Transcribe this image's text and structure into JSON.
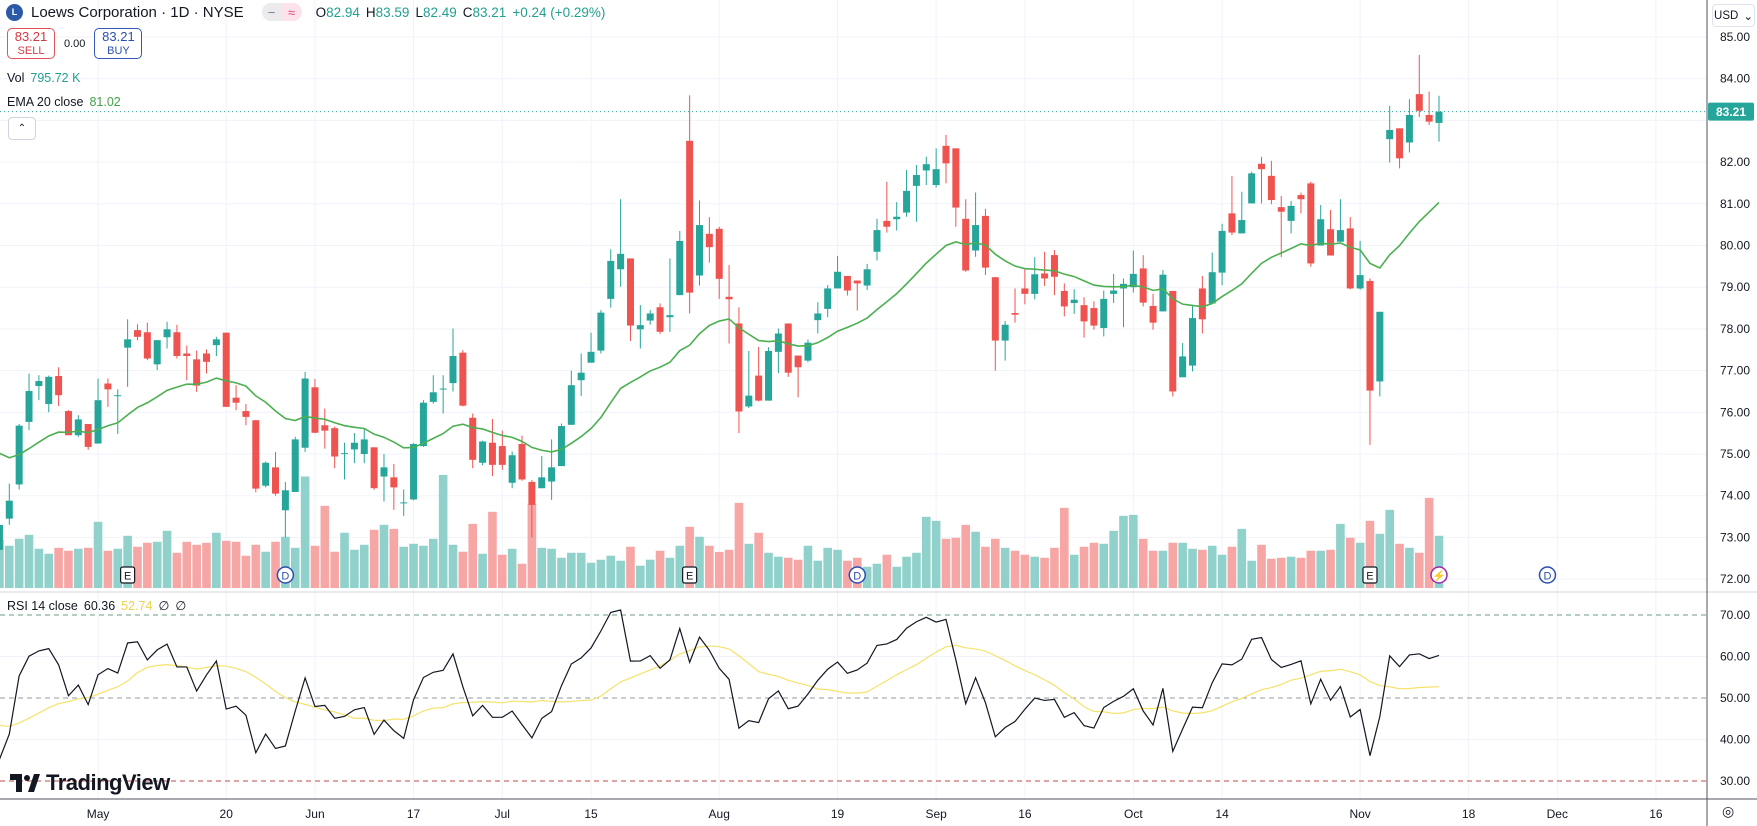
{
  "header": {
    "logo_text": "L",
    "symbol_title": "Loews Corporation · 1D · NYSE",
    "pill_icons": [
      "−",
      "≈"
    ],
    "ohlc": {
      "o_label": "O",
      "o": "82.94",
      "h_label": "H",
      "h": "83.59",
      "l_label": "L",
      "l": "82.49",
      "c_label": "C",
      "c": "83.21",
      "change": "+0.24 (+0.29%)"
    }
  },
  "trade": {
    "sell_price": "83.21",
    "sell_label": "SELL",
    "spread": "0.00",
    "buy_price": "83.21",
    "buy_label": "BUY"
  },
  "volume_legend": {
    "label": "Vol",
    "value": "795.72 K"
  },
  "ema_legend": {
    "label": "EMA 20 close",
    "value": "81.02"
  },
  "rsi_legend": {
    "label": "RSI 14 close",
    "value": "60.36",
    "ma_value": "52.74",
    "extra1": "∅",
    "extra2": "∅"
  },
  "collapse_icon": "⌃",
  "currency": {
    "label": "USD",
    "chevron": "⌄"
  },
  "last_price_tag": "83.21",
  "branding": "TradingView",
  "settings_icon": "◎",
  "colors": {
    "up": "#26a69a",
    "down": "#ef5350",
    "ema": "#4caf50",
    "rsi": "#131722",
    "rsi_ma": "#f5e26b",
    "vol_up": "#90d2cb",
    "vol_down": "#f5a6a5"
  },
  "chart_data": {
    "type": "candlestick",
    "title": "Loews Corporation · 1D · NYSE",
    "price_axis_ticks": [
      "85.00",
      "84.00",
      "83.00",
      "82.00",
      "81.00",
      "80.00",
      "79.00",
      "78.00",
      "77.00",
      "76.00",
      "75.00",
      "74.00",
      "73.00",
      "72.00"
    ],
    "price_range": [
      72,
      85
    ],
    "rsi_axis_ticks": [
      "70.00",
      "60.00",
      "50.00",
      "40.00",
      "30.00"
    ],
    "rsi_range": [
      30,
      70
    ],
    "x_ticks": [
      {
        "label": "May",
        "bar": 10
      },
      {
        "label": "20",
        "bar": 23
      },
      {
        "label": "Jun",
        "bar": 32
      },
      {
        "label": "17",
        "bar": 42
      },
      {
        "label": "Jul",
        "bar": 51
      },
      {
        "label": "15",
        "bar": 60
      },
      {
        "label": "Aug",
        "bar": 73
      },
      {
        "label": "19",
        "bar": 85
      },
      {
        "label": "Sep",
        "bar": 95
      },
      {
        "label": "16",
        "bar": 104
      },
      {
        "label": "Oct",
        "bar": 115
      },
      {
        "label": "14",
        "bar": 124
      },
      {
        "label": "Nov",
        "bar": 138
      },
      {
        "label": "18",
        "bar": 149
      },
      {
        "label": "Dec",
        "bar": 158
      },
      {
        "label": "16",
        "bar": 168
      }
    ],
    "events": [
      {
        "type": "E",
        "bar": 13
      },
      {
        "type": "D",
        "bar": 29
      },
      {
        "type": "E",
        "bar": 70
      },
      {
        "type": "D",
        "bar": 87
      },
      {
        "type": "E",
        "bar": 139
      },
      {
        "type": "⚡",
        "bar": 146
      },
      {
        "type": "D",
        "bar": 157
      }
    ],
    "ema_period": 20,
    "ema_seed": 75.2,
    "rsi_period": 14,
    "candle_fields": [
      "open",
      "high",
      "low",
      "close",
      "volume_k"
    ],
    "candles": [
      [
        72.7,
        73.4,
        72.6,
        73.3,
        735
      ],
      [
        73.45,
        74.29,
        73.3,
        73.88,
        644
      ],
      [
        74.27,
        75.72,
        74.15,
        75.68,
        750
      ],
      [
        75.77,
        76.93,
        75.57,
        76.51,
        811
      ],
      [
        76.63,
        76.89,
        76.29,
        76.75,
        598
      ],
      [
        76.2,
        76.88,
        76.0,
        76.85,
        522
      ],
      [
        76.87,
        77.08,
        76.15,
        76.41,
        613
      ],
      [
        76.03,
        76.05,
        75.45,
        75.45,
        568
      ],
      [
        75.45,
        75.93,
        75.41,
        75.83,
        598
      ],
      [
        75.72,
        75.72,
        75.1,
        75.17,
        613
      ],
      [
        75.25,
        76.81,
        75.25,
        76.29,
        1009
      ],
      [
        76.69,
        76.81,
        76.13,
        76.55,
        568
      ],
      [
        76.39,
        76.55,
        75.48,
        76.41,
        598
      ],
      [
        77.55,
        78.23,
        76.61,
        77.75,
        796
      ],
      [
        77.97,
        78.11,
        77.73,
        77.81,
        629
      ],
      [
        77.92,
        78.15,
        77.25,
        77.29,
        690
      ],
      [
        77.15,
        77.73,
        77.01,
        77.73,
        705
      ],
      [
        77.8,
        78.17,
        77.53,
        77.99,
        872
      ],
      [
        77.92,
        78.1,
        77.29,
        77.35,
        537
      ],
      [
        77.41,
        77.6,
        76.77,
        77.35,
        705
      ],
      [
        77.27,
        77.48,
        76.49,
        76.64,
        659
      ],
      [
        77.41,
        77.51,
        76.93,
        77.21,
        690
      ],
      [
        77.61,
        77.81,
        77.35,
        77.75,
        842
      ],
      [
        77.91,
        77.91,
        76.13,
        76.13,
        720
      ],
      [
        76.35,
        76.65,
        76.05,
        76.23,
        705
      ],
      [
        76.03,
        76.2,
        75.69,
        75.89,
        492
      ],
      [
        75.81,
        75.81,
        74.08,
        74.17,
        659
      ],
      [
        74.24,
        74.82,
        74.2,
        74.79,
        553
      ],
      [
        74.68,
        75.05,
        74.0,
        74.05,
        705
      ],
      [
        73.65,
        74.33,
        73.0,
        74.13,
        781
      ],
      [
        74.09,
        75.41,
        74.09,
        75.35,
        613
      ],
      [
        75.15,
        76.97,
        75.05,
        76.81,
        1700
      ],
      [
        76.6,
        76.8,
        75.5,
        75.51,
        644
      ],
      [
        75.69,
        76.09,
        75.13,
        75.56,
        1252
      ],
      [
        75.62,
        75.66,
        74.66,
        74.94,
        553
      ],
      [
        75.0,
        75.27,
        74.39,
        75.02,
        842
      ],
      [
        75.11,
        75.5,
        74.78,
        75.27,
        583
      ],
      [
        75.0,
        75.62,
        74.78,
        75.35,
        659
      ],
      [
        75.16,
        75.16,
        74.14,
        74.18,
        887
      ],
      [
        74.46,
        75.0,
        73.86,
        74.68,
        963
      ],
      [
        74.44,
        74.76,
        73.66,
        74.2,
        902
      ],
      [
        73.82,
        74.15,
        73.51,
        73.84,
        629
      ],
      [
        73.91,
        75.26,
        73.89,
        75.24,
        674
      ],
      [
        75.19,
        76.29,
        75.17,
        76.23,
        644
      ],
      [
        76.25,
        76.89,
        76.21,
        76.48,
        750
      ],
      [
        76.55,
        76.89,
        75.97,
        76.57,
        1724
      ],
      [
        76.7,
        78.01,
        76.5,
        77.35,
        659
      ],
      [
        77.43,
        77.49,
        76.14,
        76.16,
        553
      ],
      [
        75.87,
        75.97,
        74.66,
        74.86,
        978
      ],
      [
        74.79,
        75.32,
        74.73,
        75.3,
        522
      ],
      [
        75.27,
        75.84,
        74.47,
        74.74,
        1161
      ],
      [
        75.19,
        75.56,
        74.62,
        74.74,
        507
      ],
      [
        74.31,
        75.06,
        74.18,
        74.97,
        598
      ],
      [
        75.24,
        75.44,
        74.36,
        74.39,
        370
      ],
      [
        74.33,
        74.38,
        73.0,
        73.78,
        1283
      ],
      [
        74.18,
        74.95,
        74.18,
        74.44,
        613
      ],
      [
        74.34,
        75.35,
        73.9,
        74.68,
        598
      ],
      [
        74.71,
        75.73,
        74.71,
        75.67,
        461
      ],
      [
        75.7,
        77.0,
        75.7,
        76.65,
        537
      ],
      [
        76.77,
        77.41,
        76.39,
        76.95,
        537
      ],
      [
        77.19,
        77.91,
        77.19,
        77.45,
        385
      ],
      [
        77.48,
        78.45,
        77.41,
        78.39,
        431
      ],
      [
        78.72,
        79.91,
        78.51,
        79.63,
        492
      ],
      [
        79.43,
        81.11,
        79.01,
        79.8,
        416
      ],
      [
        79.69,
        79.69,
        77.71,
        78.08,
        629
      ],
      [
        77.99,
        78.57,
        77.53,
        78.09,
        340
      ],
      [
        78.2,
        78.45,
        78.1,
        78.37,
        431
      ],
      [
        78.52,
        78.61,
        77.88,
        77.93,
        568
      ],
      [
        78.28,
        79.69,
        77.93,
        78.33,
        461
      ],
      [
        78.81,
        80.35,
        78.81,
        80.11,
        644
      ],
      [
        82.51,
        83.6,
        78.37,
        78.87,
        933
      ],
      [
        79.28,
        81.08,
        79.04,
        80.49,
        781
      ],
      [
        80.28,
        80.68,
        79.59,
        79.96,
        644
      ],
      [
        80.4,
        80.45,
        78.72,
        79.2,
        550
      ],
      [
        78.77,
        79.53,
        77.65,
        78.71,
        583
      ],
      [
        78.13,
        78.52,
        75.5,
        76.02,
        1298
      ],
      [
        76.14,
        77.47,
        76.1,
        76.4,
        674
      ],
      [
        76.88,
        77.57,
        76.26,
        76.28,
        842
      ],
      [
        76.28,
        77.56,
        76.28,
        77.47,
        537
      ],
      [
        77.45,
        78.01,
        76.94,
        77.89,
        477
      ],
      [
        78.13,
        78.13,
        76.85,
        76.95,
        461
      ],
      [
        77.36,
        77.36,
        76.36,
        77.08,
        431
      ],
      [
        77.24,
        77.75,
        77.2,
        77.67,
        644
      ],
      [
        78.21,
        78.64,
        77.89,
        78.37,
        416
      ],
      [
        78.48,
        79.05,
        78.28,
        78.97,
        613
      ],
      [
        78.97,
        79.75,
        78.97,
        79.37,
        583
      ],
      [
        79.27,
        79.27,
        78.8,
        78.92,
        416
      ],
      [
        79.16,
        79.16,
        78.44,
        79.09,
        461
      ],
      [
        79.04,
        79.56,
        78.93,
        79.43,
        324
      ],
      [
        79.85,
        80.64,
        79.64,
        80.37,
        370
      ],
      [
        80.59,
        81.53,
        80.31,
        80.45,
        507
      ],
      [
        80.63,
        81.04,
        80.36,
        80.69,
        324
      ],
      [
        80.79,
        81.81,
        80.69,
        81.31,
        477
      ],
      [
        81.43,
        81.93,
        80.57,
        81.69,
        537
      ],
      [
        81.8,
        82.13,
        81.45,
        81.95,
        1085
      ],
      [
        81.45,
        82.33,
        81.39,
        81.83,
        1024
      ],
      [
        82.39,
        82.65,
        81.49,
        81.97,
        750
      ],
      [
        82.33,
        82.33,
        80.45,
        80.91,
        766
      ],
      [
        80.64,
        81.11,
        79.37,
        79.4,
        963
      ],
      [
        79.88,
        81.27,
        79.73,
        80.49,
        857
      ],
      [
        80.71,
        80.88,
        79.29,
        79.47,
        629
      ],
      [
        79.24,
        79.24,
        77.0,
        77.72,
        750
      ],
      [
        77.72,
        78.19,
        77.24,
        78.1,
        613
      ],
      [
        78.38,
        78.97,
        78.15,
        78.34,
        568
      ],
      [
        78.97,
        79.43,
        78.59,
        78.84,
        507
      ],
      [
        78.84,
        79.72,
        78.71,
        79.31,
        477
      ],
      [
        79.33,
        79.85,
        79.03,
        79.21,
        461
      ],
      [
        79.77,
        79.89,
        78.81,
        79.25,
        613
      ],
      [
        78.91,
        79.09,
        78.3,
        78.54,
        1222
      ],
      [
        78.62,
        78.95,
        78.36,
        78.7,
        507
      ],
      [
        78.57,
        78.76,
        77.79,
        78.18,
        629
      ],
      [
        78.5,
        78.66,
        77.98,
        78.08,
        690
      ],
      [
        78.02,
        78.92,
        77.82,
        78.72,
        674
      ],
      [
        78.84,
        79.32,
        78.62,
        78.92,
        872
      ],
      [
        78.97,
        79.21,
        78.04,
        79.08,
        1100
      ],
      [
        79.0,
        79.88,
        78.87,
        79.32,
        1115
      ],
      [
        79.45,
        79.77,
        78.54,
        78.63,
        750
      ],
      [
        78.55,
        78.84,
        77.98,
        78.15,
        568
      ],
      [
        78.42,
        79.41,
        78.42,
        79.3,
        568
      ],
      [
        78.91,
        78.91,
        76.38,
        76.5,
        690
      ],
      [
        76.84,
        77.66,
        76.84,
        77.34,
        690
      ],
      [
        77.12,
        78.57,
        76.98,
        78.26,
        598
      ],
      [
        78.97,
        79.27,
        77.89,
        78.23,
        583
      ],
      [
        78.61,
        79.83,
        78.61,
        79.36,
        644
      ],
      [
        79.35,
        80.52,
        79.05,
        80.35,
        507
      ],
      [
        80.77,
        81.67,
        80.25,
        80.31,
        629
      ],
      [
        80.29,
        81.29,
        80.29,
        80.61,
        902
      ],
      [
        81.01,
        81.77,
        81.01,
        81.73,
        416
      ],
      [
        81.96,
        82.13,
        81.01,
        81.83,
        659
      ],
      [
        81.67,
        82.03,
        80.99,
        81.09,
        446
      ],
      [
        80.92,
        81.19,
        79.72,
        80.81,
        461
      ],
      [
        80.59,
        81.07,
        80.29,
        80.95,
        477
      ],
      [
        81.21,
        81.27,
        80.77,
        81.11,
        461
      ],
      [
        81.49,
        81.53,
        79.49,
        79.57,
        568
      ],
      [
        80.0,
        80.97,
        80.0,
        80.63,
        568
      ],
      [
        80.39,
        80.85,
        79.76,
        79.76,
        583
      ],
      [
        80.09,
        81.11,
        80.09,
        80.37,
        978
      ],
      [
        80.41,
        80.68,
        78.95,
        78.97,
        766
      ],
      [
        78.97,
        80.11,
        78.94,
        79.29,
        690
      ],
      [
        79.15,
        79.21,
        75.22,
        76.52,
        1024
      ],
      [
        76.74,
        78.41,
        76.38,
        78.41,
        826
      ],
      [
        82.55,
        83.35,
        81.99,
        82.77,
        1191
      ],
      [
        82.81,
        82.81,
        81.85,
        82.09,
        674
      ],
      [
        82.47,
        83.51,
        82.23,
        83.13,
        613
      ],
      [
        83.63,
        84.57,
        83.08,
        83.23,
        537
      ],
      [
        83.13,
        83.69,
        82.89,
        82.97,
        1374
      ],
      [
        82.94,
        83.59,
        82.49,
        83.21,
        796
      ]
    ],
    "last_price": 83.21,
    "rsi_levels": [
      70,
      50,
      30
    ]
  }
}
